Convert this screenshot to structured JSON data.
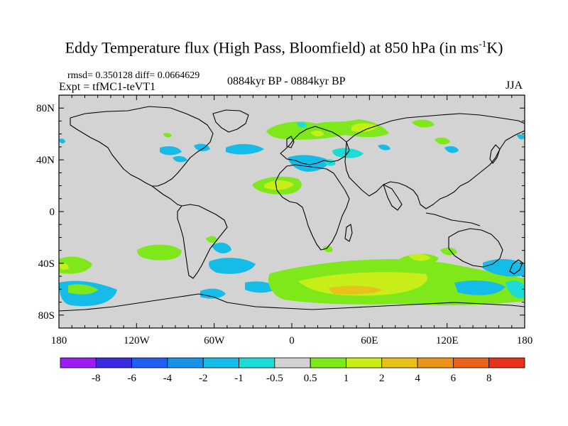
{
  "title": {
    "main": "Eddy Temperature flux (High Pass, Bloomfield) at 850 hPa (in ms",
    "sup": "-1",
    "end": "K)"
  },
  "stats_label": "rmsd= 0.350128 diff= 0.0664629",
  "experiment_label": "Expt = tfMC1-teVT1",
  "period_label": "0884kyr BP - 0884kyr BP",
  "season_label": "JJA",
  "map": {
    "lat_ticks": [
      "80N",
      "40N",
      "0",
      "40S",
      "80S"
    ],
    "lat_values": [
      80,
      40,
      0,
      -40,
      -80
    ],
    "lon_ticks": [
      "180",
      "120W",
      "60W",
      "0",
      "60E",
      "120E",
      "180"
    ],
    "lon_values": [
      -180,
      -120,
      -60,
      0,
      60,
      120,
      180
    ],
    "lat_range": [
      -90,
      90
    ],
    "lon_range": [
      -180,
      180
    ],
    "background_color": "#d3d3d3"
  },
  "colorbar": {
    "labels": [
      "-8",
      "-6",
      "-4",
      "-2",
      "-1",
      "-0.5",
      "0.5",
      "1",
      "2",
      "4",
      "6",
      "8"
    ],
    "colors": [
      "#9a1cf0",
      "#3a2be0",
      "#1e5ef0",
      "#1a92ea",
      "#16bce8",
      "#1ddcd6",
      "#d3d3d3",
      "#7ee81b",
      "#c8ee1a",
      "#e8c21a",
      "#ea921a",
      "#e8621a",
      "#e6321a"
    ]
  }
}
